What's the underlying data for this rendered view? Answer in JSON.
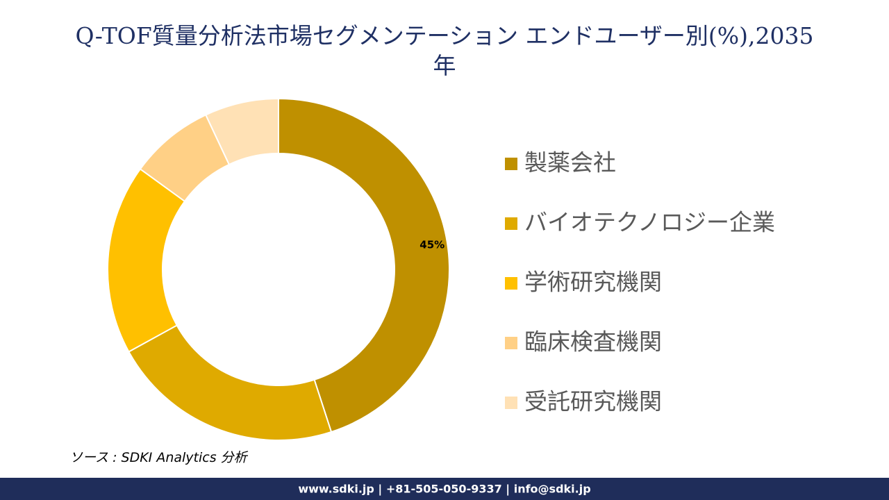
{
  "chart_data": {
    "type": "donut",
    "title": "Q-TOF質量分析法市場セグメンテーション エンドユーザー別(%),2035年",
    "categories": [
      "製薬会社",
      "バイオテクノロジー企業",
      "学術研究機関",
      "臨床検査機関",
      "受託研究機関"
    ],
    "values": [
      45,
      22,
      18,
      8,
      7
    ],
    "value_labels": [
      "45%",
      null,
      null,
      null,
      null
    ],
    "colors": [
      "#BF9000",
      "#DFAA00",
      "#FFC000",
      "#FFD086",
      "#FFE1B5"
    ],
    "legend": "right"
  },
  "source": "ソース : SDKI Analytics 分析",
  "footer": "www.sdki.jp | +81-505-050-9337 | info@sdki.jp"
}
